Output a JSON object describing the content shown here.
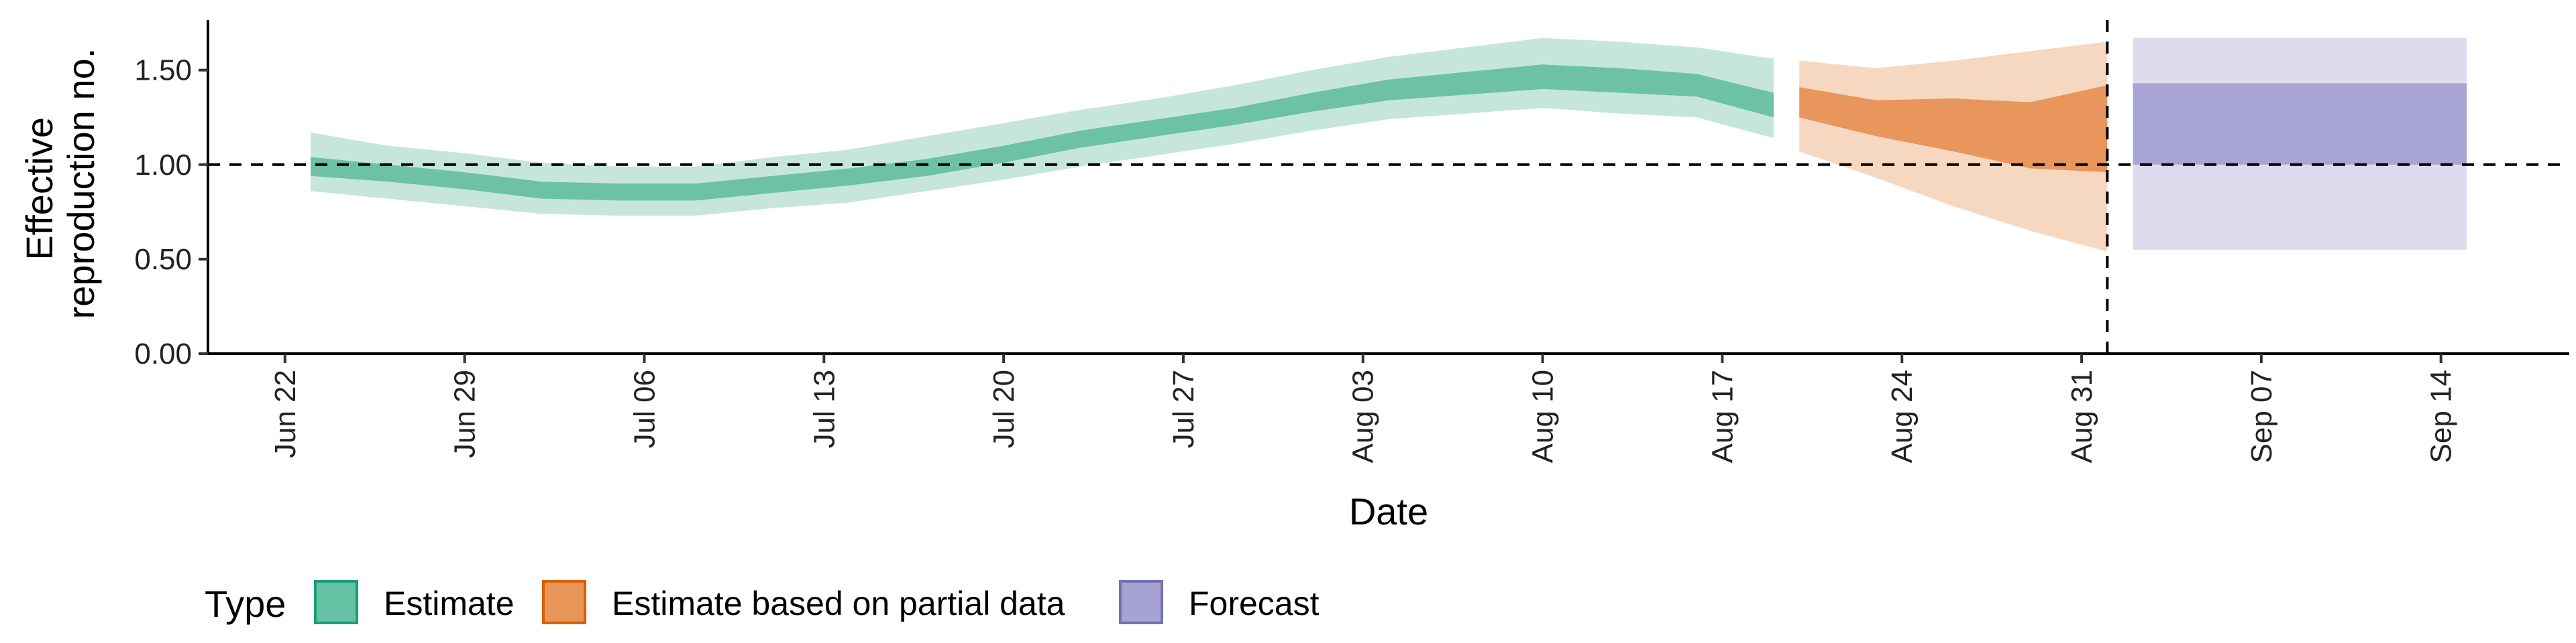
{
  "chart_data": {
    "type": "area",
    "xlabel": "Date",
    "ylabel": [
      "Effective",
      "reproduction no."
    ],
    "y_ticks": [
      "0.00",
      "0.50",
      "1.00",
      "1.50"
    ],
    "ylim": [
      0,
      1.8
    ],
    "x_ticks": [
      {
        "date": "2020-06-22",
        "label": "Jun 22"
      },
      {
        "date": "2020-06-29",
        "label": "Jun 29"
      },
      {
        "date": "2020-07-06",
        "label": "Jul 06"
      },
      {
        "date": "2020-07-13",
        "label": "Jul 13"
      },
      {
        "date": "2020-07-20",
        "label": "Jul 20"
      },
      {
        "date": "2020-07-27",
        "label": "Jul 27"
      },
      {
        "date": "2020-08-03",
        "label": "Aug 03"
      },
      {
        "date": "2020-08-10",
        "label": "Aug 10"
      },
      {
        "date": "2020-08-17",
        "label": "Aug 17"
      },
      {
        "date": "2020-08-24",
        "label": "Aug 24"
      },
      {
        "date": "2020-08-31",
        "label": "Aug 31"
      },
      {
        "date": "2020-09-07",
        "label": "Sep 07"
      },
      {
        "date": "2020-09-14",
        "label": "Sep 14"
      }
    ],
    "xlim": [
      "2020-06-19",
      "2020-09-19"
    ],
    "reference_line_y": 1.0,
    "reference_line_x": "2020-09-01",
    "legend": {
      "title": "Type",
      "position": "bottom",
      "entries": [
        {
          "label": "Estimate",
          "fill": "#66c2a5",
          "border": "#1b9e77"
        },
        {
          "label": "Estimate based on partial data",
          "fill": "#e8955a",
          "border": "#d95f02"
        },
        {
          "label": "Forecast",
          "fill": "#a6a2d2",
          "border": "#7570b3"
        }
      ]
    },
    "series": [
      {
        "type_index": 0,
        "outer_color": "#c6e6dc",
        "inner_color": "#6dc2a5",
        "points": [
          {
            "date": "2020-06-23",
            "lo90": 0.86,
            "lo50": 0.94,
            "hi50": 1.04,
            "hi90": 1.17
          },
          {
            "date": "2020-06-26",
            "lo90": 0.82,
            "lo50": 0.91,
            "hi50": 1.0,
            "hi90": 1.1
          },
          {
            "date": "2020-06-29",
            "lo90": 0.78,
            "lo50": 0.87,
            "hi50": 0.96,
            "hi90": 1.06
          },
          {
            "date": "2020-07-02",
            "lo90": 0.74,
            "lo50": 0.82,
            "hi50": 0.91,
            "hi90": 1.01
          },
          {
            "date": "2020-07-05",
            "lo90": 0.73,
            "lo50": 0.81,
            "hi50": 0.9,
            "hi90": 0.99
          },
          {
            "date": "2020-07-08",
            "lo90": 0.73,
            "lo50": 0.81,
            "hi50": 0.9,
            "hi90": 0.99
          },
          {
            "date": "2020-07-11",
            "lo90": 0.77,
            "lo50": 0.85,
            "hi50": 0.94,
            "hi90": 1.04
          },
          {
            "date": "2020-07-14",
            "lo90": 0.8,
            "lo50": 0.89,
            "hi50": 0.98,
            "hi90": 1.08
          },
          {
            "date": "2020-07-17",
            "lo90": 0.86,
            "lo50": 0.94,
            "hi50": 1.03,
            "hi90": 1.15
          },
          {
            "date": "2020-07-20",
            "lo90": 0.92,
            "lo50": 1.01,
            "hi50": 1.1,
            "hi90": 1.22
          },
          {
            "date": "2020-07-23",
            "lo90": 0.99,
            "lo50": 1.09,
            "hi50": 1.18,
            "hi90": 1.29
          },
          {
            "date": "2020-07-26",
            "lo90": 1.05,
            "lo50": 1.15,
            "hi50": 1.24,
            "hi90": 1.35
          },
          {
            "date": "2020-07-29",
            "lo90": 1.11,
            "lo50": 1.21,
            "hi50": 1.3,
            "hi90": 1.42
          },
          {
            "date": "2020-08-01",
            "lo90": 1.18,
            "lo50": 1.28,
            "hi50": 1.38,
            "hi90": 1.5
          },
          {
            "date": "2020-08-04",
            "lo90": 1.24,
            "lo50": 1.34,
            "hi50": 1.45,
            "hi90": 1.57
          },
          {
            "date": "2020-08-07",
            "lo90": 1.27,
            "lo50": 1.37,
            "hi50": 1.49,
            "hi90": 1.62
          },
          {
            "date": "2020-08-10",
            "lo90": 1.3,
            "lo50": 1.4,
            "hi50": 1.53,
            "hi90": 1.67
          },
          {
            "date": "2020-08-13",
            "lo90": 1.27,
            "lo50": 1.38,
            "hi50": 1.51,
            "hi90": 1.65
          },
          {
            "date": "2020-08-16",
            "lo90": 1.25,
            "lo50": 1.36,
            "hi50": 1.48,
            "hi90": 1.62
          },
          {
            "date": "2020-08-19",
            "lo90": 1.14,
            "lo50": 1.25,
            "hi50": 1.38,
            "hi90": 1.56
          }
        ]
      },
      {
        "type_index": 1,
        "outer_color": "#f6d7bf",
        "inner_color": "#e8965c",
        "points": [
          {
            "date": "2020-08-20",
            "lo90": 1.07,
            "lo50": 1.25,
            "hi50": 1.41,
            "hi90": 1.55
          },
          {
            "date": "2020-08-23",
            "lo90": 0.93,
            "lo50": 1.15,
            "hi50": 1.34,
            "hi90": 1.51
          },
          {
            "date": "2020-08-26",
            "lo90": 0.78,
            "lo50": 1.07,
            "hi50": 1.35,
            "hi90": 1.55
          },
          {
            "date": "2020-08-29",
            "lo90": 0.65,
            "lo50": 0.98,
            "hi50": 1.33,
            "hi90": 1.6
          },
          {
            "date": "2020-09-01",
            "lo90": 0.54,
            "lo50": 0.96,
            "hi50": 1.42,
            "hi90": 1.65
          }
        ]
      },
      {
        "type_index": 2,
        "outer_color": "#dcdbed",
        "inner_color": "#a8a4d3",
        "points": [
          {
            "date": "2020-09-02",
            "lo90": 0.55,
            "lo50": 1.0,
            "hi50": 1.43,
            "hi90": 1.67
          },
          {
            "date": "2020-09-15",
            "lo90": 0.55,
            "lo50": 1.0,
            "hi50": 1.43,
            "hi90": 1.67
          }
        ]
      }
    ]
  }
}
